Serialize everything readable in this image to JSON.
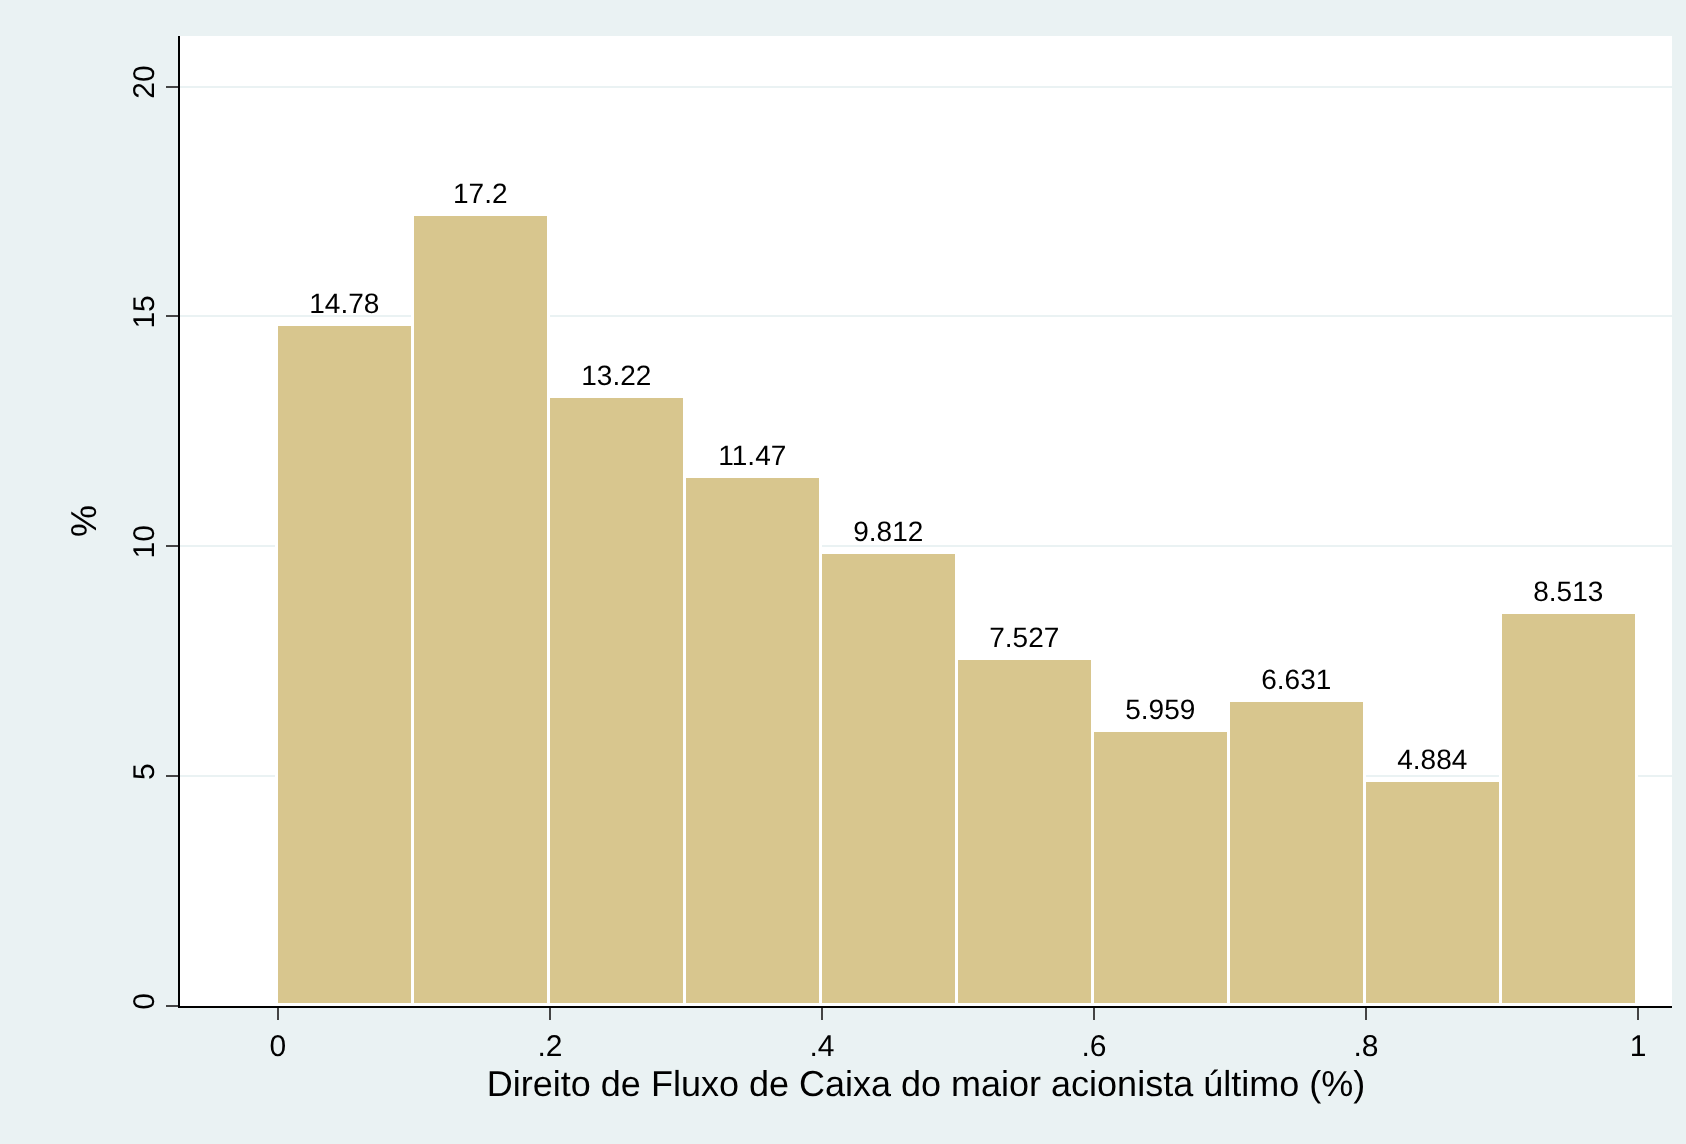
{
  "chart_data": {
    "type": "histogram",
    "xlabel": "Direito de Fluxo de Caixa do maior acionista último (%)",
    "ylabel": "%",
    "bins": [
      0,
      0.1,
      0.2,
      0.3,
      0.4,
      0.5,
      0.6,
      0.7,
      0.8,
      0.9,
      1
    ],
    "values": [
      14.78,
      17.2,
      13.22,
      11.47,
      9.812,
      7.527,
      5.959,
      6.631,
      4.884,
      8.513
    ],
    "color": "#d8c68e",
    "data_labels": true,
    "grid": "y",
    "xlim": [
      -0.072,
      1.025
    ],
    "xticks": [
      0,
      {
        "value": 0.2,
        "label": ".2"
      },
      {
        "value": 0.4,
        "label": ".4"
      },
      {
        "value": 0.6,
        "label": ".6"
      },
      {
        "value": 0.8,
        "label": ".8"
      },
      1
    ],
    "ylim": [
      0,
      21.1
    ],
    "yticks": [
      0,
      5,
      10,
      15,
      20
    ]
  }
}
